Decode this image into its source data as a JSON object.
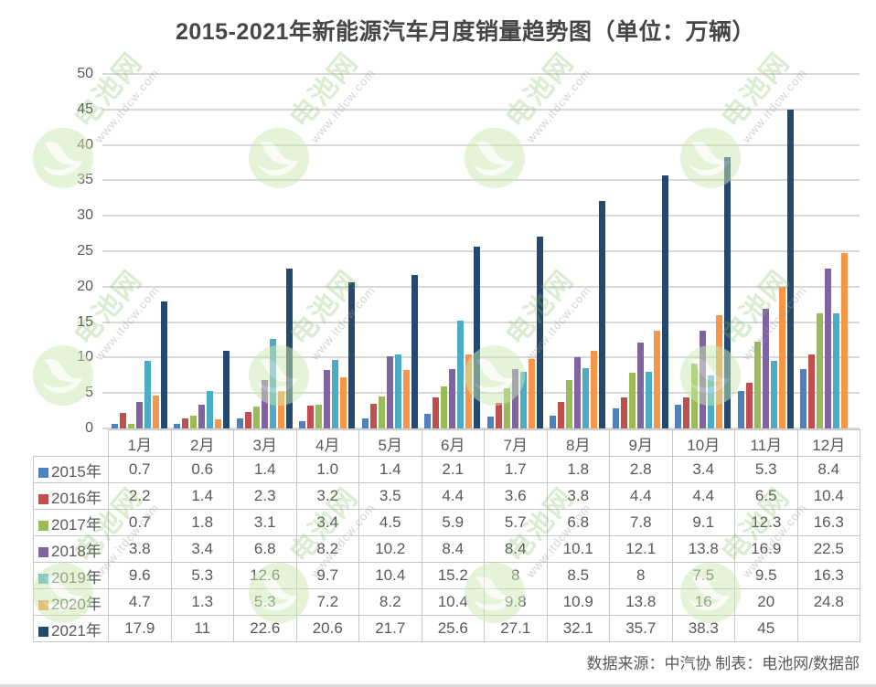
{
  "page": {
    "title": "2015-2021年新能源汽车月度销量趋势图（单位：万辆）",
    "source_note": "数据来源：中汽协 制表：电池网/数据部",
    "watermark": {
      "brand": "电池网",
      "url": "www.itdcw.com"
    }
  },
  "chart_data": {
    "type": "bar",
    "title": "2015-2021年新能源汽车月度销量趋势图（单位：万辆）",
    "unit": "万辆",
    "categories": [
      "1月",
      "2月",
      "3月",
      "4月",
      "5月",
      "6月",
      "7月",
      "8月",
      "9月",
      "10月",
      "11月",
      "12月"
    ],
    "series": [
      {
        "name": "2015年",
        "color": "#4F81BD",
        "values": [
          "0.7",
          "0.6",
          "1.4",
          "1.0",
          "1.4",
          "2.1",
          "1.7",
          "1.8",
          "2.8",
          "3.4",
          "5.3",
          "8.4"
        ]
      },
      {
        "name": "2016年",
        "color": "#C0504D",
        "values": [
          "2.2",
          "1.4",
          "2.3",
          "3.2",
          "3.5",
          "4.4",
          "3.6",
          "3.8",
          "4.4",
          "4.4",
          "6.5",
          "10.4"
        ]
      },
      {
        "name": "2017年",
        "color": "#9BBB59",
        "values": [
          "0.7",
          "1.8",
          "3.1",
          "3.4",
          "4.5",
          "5.9",
          "5.7",
          "6.8",
          "7.8",
          "9.1",
          "12.3",
          "16.3"
        ]
      },
      {
        "name": "2018年",
        "color": "#8064A2",
        "values": [
          "3.8",
          "3.4",
          "6.8",
          "8.2",
          "10.2",
          "8.4",
          "8.4",
          "10.1",
          "12.1",
          "13.8",
          "16.9",
          "22.5"
        ]
      },
      {
        "name": "2019年",
        "color": "#4BACC6",
        "values": [
          "9.6",
          "5.3",
          "12.6",
          "9.7",
          "10.4",
          "15.2",
          "8",
          "8.5",
          "8",
          "7.5",
          "9.5",
          "16.3"
        ]
      },
      {
        "name": "2020年",
        "color": "#F79646",
        "values": [
          "4.7",
          "1.3",
          "5.3",
          "7.2",
          "8.2",
          "10.4",
          "9.8",
          "10.9",
          "13.8",
          "16",
          "20",
          "24.8"
        ]
      },
      {
        "name": "2021年",
        "color": "#25496E",
        "values": [
          "17.9",
          "11",
          "22.6",
          "20.6",
          "21.7",
          "25.6",
          "27.1",
          "32.1",
          "35.7",
          "38.3",
          "45",
          ""
        ]
      }
    ],
    "ylim": [
      0,
      50
    ],
    "ytick_step": 5,
    "grid": true,
    "legend_position": "table-left"
  }
}
